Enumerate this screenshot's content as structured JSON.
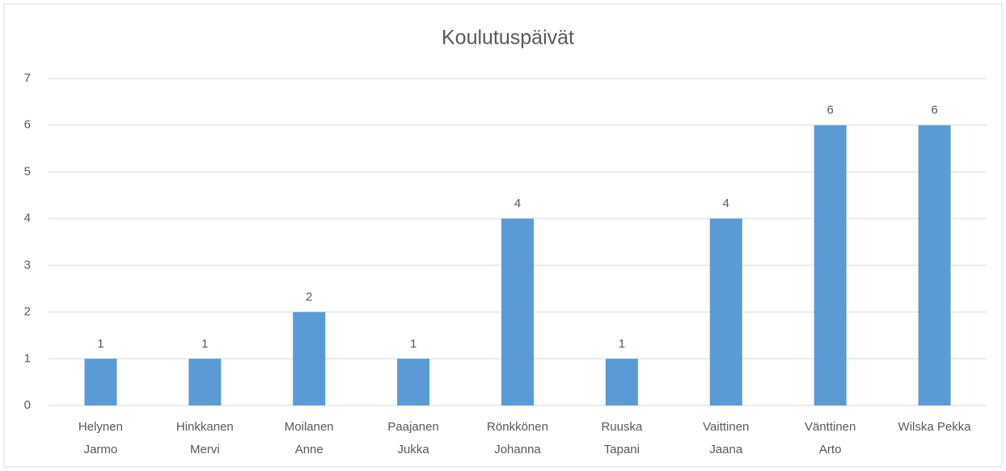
{
  "chart_data": {
    "type": "bar",
    "title": "Koulutuspäivät",
    "categories": [
      [
        "Helynen",
        "Jarmo"
      ],
      [
        "Hinkkanen",
        "Mervi"
      ],
      [
        "Moilanen",
        "Anne"
      ],
      [
        "Paajanen",
        "Jukka"
      ],
      [
        "Rönkkönen",
        "Johanna"
      ],
      [
        "Ruuska",
        "Tapani"
      ],
      [
        "Vaittinen",
        "Jaana"
      ],
      [
        "Vänttinen",
        "Arto"
      ],
      [
        "Wilska Pekka"
      ]
    ],
    "values": [
      1,
      1,
      2,
      1,
      4,
      1,
      4,
      6,
      6
    ],
    "color": "#5b9bd5",
    "ylim": [
      0,
      7
    ],
    "yticks": [
      0,
      1,
      2,
      3,
      4,
      5,
      6,
      7
    ],
    "grid": true
  }
}
